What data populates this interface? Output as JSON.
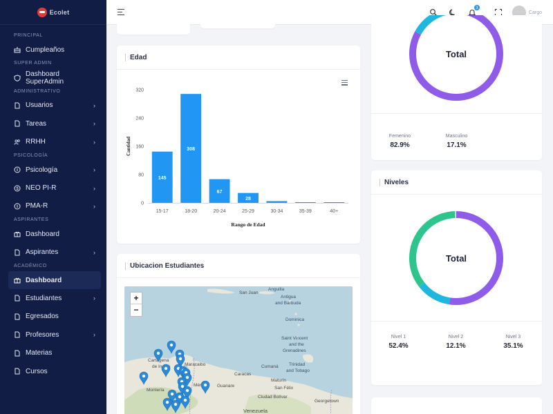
{
  "sidebar": {
    "logo_text": "Ecolet",
    "sections": {
      "principal": "PRINCIPAL",
      "super_admin": "SUPER ADMIN",
      "administrativo": "ADMINISTRATIVO",
      "psicologia": "PSICOLOGÍA",
      "aspirantes": "ASPIRANTES",
      "academico": "ACADÉMICO"
    },
    "items": {
      "cumpleanos": "Cumpleaños",
      "dashboard_superadmin": "Dashboard SuperAdmin",
      "usuarios": "Usuarios",
      "tareas": "Tareas",
      "rrhh": "RRHH",
      "psicologia": "Psicología",
      "neo": "NEO PI-R",
      "pma": "PMA-R",
      "dashboard_aspirantes": "Dashboard",
      "aspirantes": "Aspirantes",
      "dashboard_academico": "Dashboard",
      "estudiantes": "Estudiantes",
      "egresados": "Egresados",
      "profesores": "Profesores",
      "materias": "Materias",
      "cursos": "Cursos"
    }
  },
  "header": {
    "notification_count": "3",
    "user_role": "Cargo"
  },
  "edad_card": {
    "title": "Edad"
  },
  "chart_data": {
    "type": "bar",
    "categories": [
      "15-17",
      "18-20",
      "20-24",
      "25-29",
      "30-34",
      "35-39",
      "40+"
    ],
    "values": [
      145,
      308,
      67,
      28,
      5,
      2,
      1
    ],
    "data_labels": [
      "145",
      "308",
      "67",
      "28",
      "",
      "",
      ""
    ],
    "xlabel": "Rango de Edad",
    "ylabel": "Cantidad",
    "ylim": [
      0,
      320
    ],
    "yticks": [
      "0",
      "80",
      "160",
      "240",
      "320"
    ],
    "color": "#2196f3"
  },
  "genero_card": {
    "center_label": "Total",
    "segments": [
      {
        "label": "Femenino",
        "value": "82.9%",
        "fraction": 0.829,
        "color": "#8e5ce8"
      },
      {
        "label": "Masculino",
        "value": "17.1%",
        "fraction": 0.171,
        "color": "#1fb6e0"
      }
    ]
  },
  "niveles_card": {
    "title": "Niveles",
    "center_label": "Total",
    "segments": [
      {
        "label": "Nivel 1",
        "value": "52.4%",
        "fraction": 0.524,
        "color": "#8e5ce8"
      },
      {
        "label": "Nivel 2",
        "value": "12.1%",
        "fraction": 0.121,
        "color": "#1fb6e0"
      },
      {
        "label": "Nivel 3",
        "value": "35.1%",
        "fraction": 0.351,
        "color": "#2ec48e"
      }
    ]
  },
  "ubicacion_card": {
    "title": "Ubicacion Estudiantes",
    "zoom_in": "+",
    "zoom_out": "−",
    "places": {
      "anguilla": "Anguilla",
      "san_juan": "San Juan",
      "antigua": "Antigua",
      "and_barbuda": "and Barbuda",
      "dominica": "Dominica",
      "saint_vincent": "Saint Vincent",
      "and_the": "and the",
      "grenadines": "Grenadines",
      "trinidad": "Trinidad",
      "and_tobago": "and Tobago",
      "cartagena": "Cartagena",
      "de_indias": "de Indias",
      "maracaibo": "Maracaibo",
      "caracas": "Caracas",
      "cumana": "Cumaná",
      "maturin": "Maturín",
      "guanare": "Guanare",
      "merida": "Mérida",
      "monteria": "Montería",
      "ciudad_bolivar": "Ciudad Bolívar",
      "san_felix": "San Félix",
      "georgetown": "Georgetown",
      "venezuela": "Venezuela"
    }
  }
}
